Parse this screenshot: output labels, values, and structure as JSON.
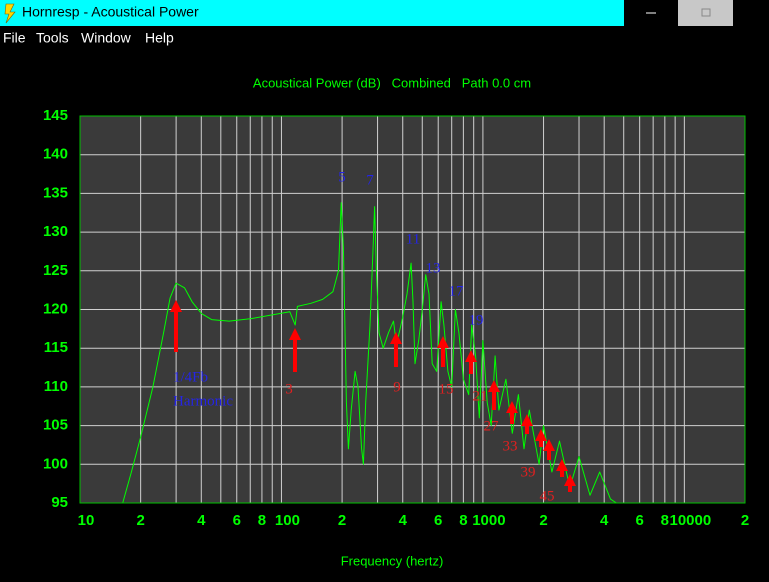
{
  "window": {
    "title": "Hornresp - Acoustical Power",
    "menu": [
      "File",
      "Tools",
      "Window",
      "Help"
    ]
  },
  "chart_data": {
    "type": "line",
    "title": "Acoustical Power (dB)   Combined   Path 0.0 cm",
    "x_label": "Frequency (hertz)",
    "x": [
      16.3,
      18,
      20,
      23,
      26,
      28,
      30,
      33,
      36,
      40,
      45,
      55,
      70,
      90,
      110,
      117,
      120,
      140,
      160,
      180,
      192,
      198,
      203,
      210,
      215,
      222,
      232,
      240,
      250,
      255,
      262,
      275,
      285,
      290,
      296,
      305,
      320,
      340,
      360,
      370,
      380,
      400,
      420,
      440,
      450,
      460,
      480,
      500,
      520,
      540,
      560,
      590,
      620,
      640,
      670,
      700,
      730,
      760,
      800,
      850,
      880,
      920,
      960,
      1000,
      1050,
      1100,
      1150,
      1200,
      1300,
      1400,
      1500,
      1600,
      1700,
      1900,
      2000,
      2200,
      2400,
      2700,
      3000,
      3400,
      3800,
      4300,
      4600
    ],
    "series": [
      {
        "color": "#00ff00",
        "values": [
          95,
          99,
          103.5,
          110,
          117,
          121.5,
          123.4,
          122.8,
          121,
          119.5,
          118.7,
          118.5,
          118.8,
          119.3,
          119.7,
          118,
          120.4,
          120.8,
          121.3,
          122.3,
          125,
          133.8,
          128,
          108,
          102,
          107,
          112,
          110,
          102,
          100,
          108,
          118,
          128,
          133.3,
          125,
          117,
          115,
          117,
          118.5,
          116,
          116.5,
          119,
          122,
          126,
          121,
          113,
          116,
          120,
          124.5,
          122,
          113,
          112,
          121,
          118,
          112,
          110,
          120,
          117,
          111,
          109,
          118,
          114,
          106,
          116,
          108,
          105,
          114,
          107,
          111,
          104,
          109,
          102,
          107,
          100,
          105,
          99,
          103,
          97,
          101,
          96,
          99,
          95.5,
          95
        ]
      }
    ],
    "xlim": [
      10,
      20000
    ],
    "xscale": "log",
    "xticks": [
      10,
      {
        "value": 20,
        "label": "2"
      },
      {
        "value": 40,
        "label": "4"
      },
      {
        "value": 60,
        "label": "6"
      },
      {
        "value": 80,
        "label": "8"
      },
      100,
      {
        "value": 200,
        "label": "2"
      },
      {
        "value": 400,
        "label": "4"
      },
      {
        "value": 600,
        "label": "6"
      },
      {
        "value": 800,
        "label": "8"
      },
      1000,
      {
        "value": 2000,
        "label": "2"
      },
      {
        "value": 4000,
        "label": "4"
      },
      {
        "value": 6000,
        "label": "6"
      },
      {
        "value": 8000,
        "label": "8"
      },
      10000,
      {
        "value": 20000,
        "label": "2"
      }
    ],
    "minor_xticks": [
      30,
      50,
      70,
      90,
      300,
      500,
      700,
      900,
      3000,
      5000,
      7000,
      9000
    ],
    "ylim": [
      95,
      145
    ],
    "yticks": [
      95,
      100,
      105,
      110,
      115,
      120,
      125,
      130,
      135,
      140,
      145
    ],
    "grid": true,
    "annotations": [
      "1/4Fb",
      "Harmonic",
      "5",
      "7",
      "11",
      "13",
      "17",
      "19",
      "3",
      "9",
      "15",
      "21",
      "27",
      "33",
      "39",
      "45"
    ]
  }
}
